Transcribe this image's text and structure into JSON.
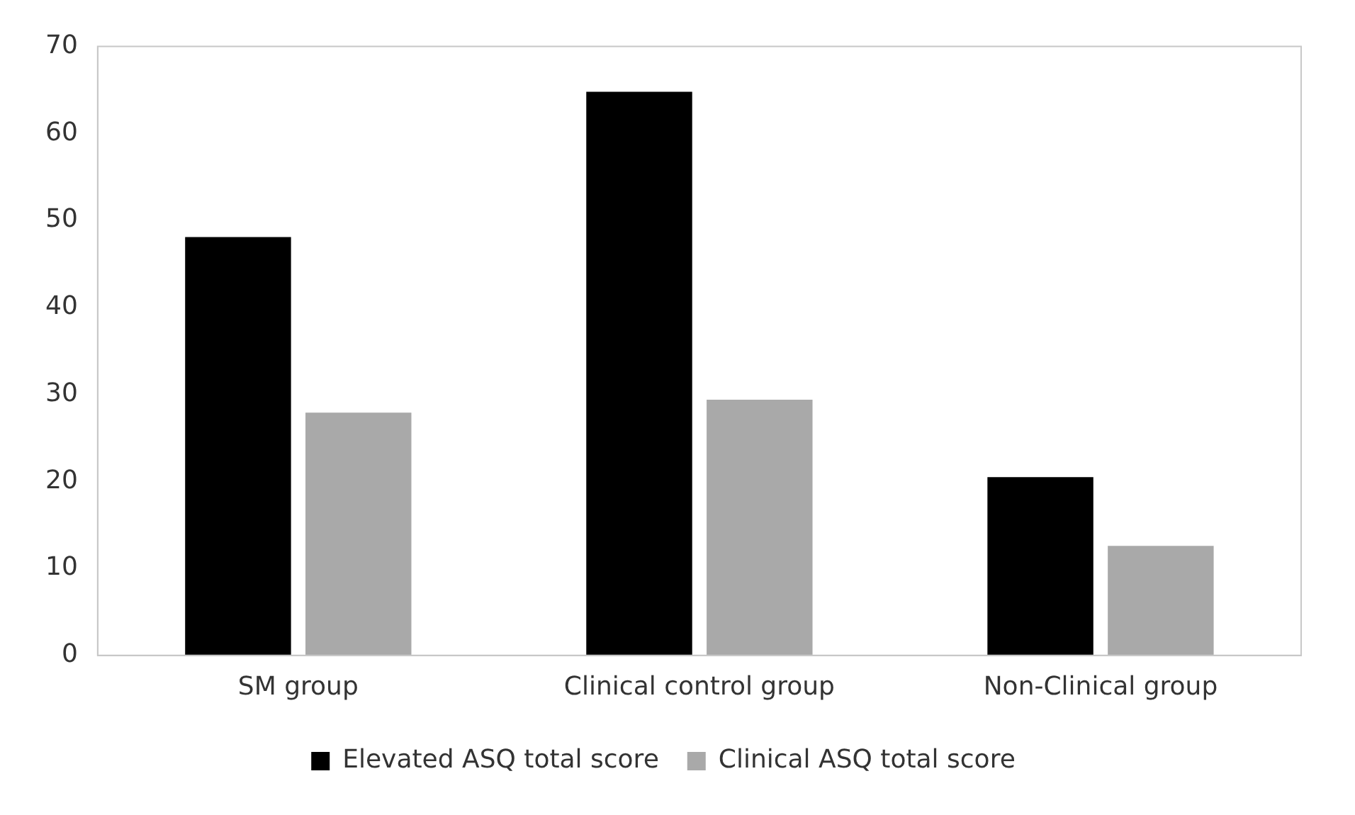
{
  "chart_data": {
    "type": "bar",
    "categories": [
      "SM group",
      "Clinical control group",
      "Non-Clinical group"
    ],
    "series": [
      {
        "name": "Elevated ASQ total score",
        "color": "#000000",
        "values": [
          48.1,
          64.8,
          20.5
        ]
      },
      {
        "name": "Clinical ASQ total score",
        "color": "#a9a9a9",
        "values": [
          27.9,
          29.4,
          12.6
        ]
      }
    ],
    "ylim": [
      0,
      70
    ],
    "yticks": [
      0,
      10,
      20,
      30,
      40,
      50,
      60,
      70
    ],
    "grid": false,
    "legend": "bottom"
  }
}
